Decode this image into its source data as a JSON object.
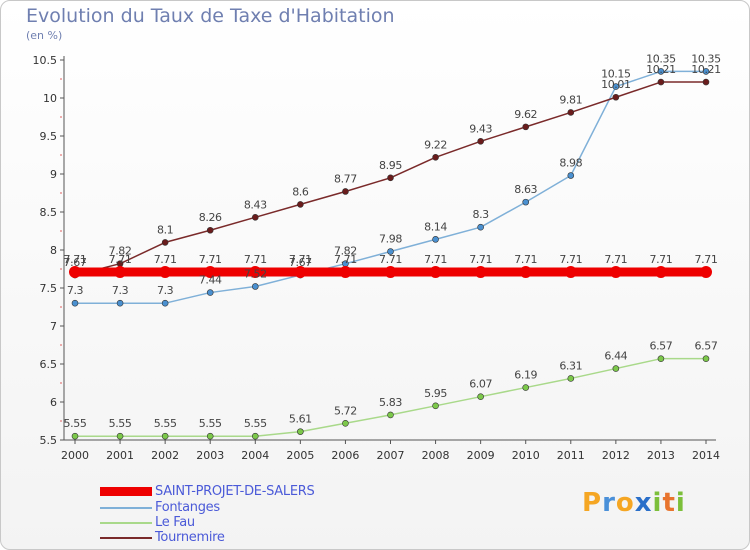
{
  "title": "Evolution du Taux de Taxe d'Habitation",
  "subtitle": "(en %)",
  "logo": {
    "text": "Proxiti",
    "letters": [
      "P",
      "r",
      "o",
      "x",
      "i",
      "t",
      "i"
    ],
    "colors": [
      "#f5a623",
      "#4a90d9",
      "#f5a623",
      "#2a6fc9",
      "#7cbf3a",
      "#e8742e",
      "#7cbf3a"
    ]
  },
  "chart_data": {
    "type": "line",
    "x": [
      "2000",
      "2001",
      "2002",
      "2003",
      "2004",
      "2005",
      "2006",
      "2007",
      "2008",
      "2009",
      "2010",
      "2011",
      "2012",
      "2013",
      "2014"
    ],
    "ylim": [
      5.5,
      10.5
    ],
    "yticks": [
      "5.5",
      "6",
      "6.5",
      "7",
      "7.5",
      "8",
      "8.5",
      "9",
      "9.5",
      "10",
      "10.5"
    ],
    "grid": false,
    "legend_position": "bottom-left",
    "series": [
      {
        "name": "SAINT-PROJET-DE-SALERS",
        "color": "#ee0000",
        "width": 9,
        "marker_r": 6,
        "values": [
          7.71,
          7.71,
          7.71,
          7.71,
          7.71,
          7.71,
          7.71,
          7.71,
          7.71,
          7.71,
          7.71,
          7.71,
          7.71,
          7.71,
          7.71
        ],
        "labels": [
          "7.71",
          "7.71",
          "7.71",
          "7.71",
          "7.71",
          "7.71",
          "7.71",
          "7.71",
          "7.71",
          "7.71",
          "7.71",
          "7.71",
          "7.71",
          "7.71",
          "7.71"
        ]
      },
      {
        "name": "Fontanges",
        "color": "#7fb0d8",
        "marker": "#4a90d0",
        "width": 1.5,
        "marker_r": 3,
        "values": [
          7.3,
          7.3,
          7.3,
          7.44,
          7.52,
          7.67,
          7.82,
          7.98,
          8.14,
          8.3,
          8.63,
          8.98,
          10.15,
          10.35,
          10.35
        ],
        "labels": [
          "7.3",
          "7.3",
          "7.3",
          "7.44",
          "7.52",
          "7.67",
          "7.82",
          "7.98",
          "8.14",
          "8.3",
          "8.63",
          "8.98",
          "10.15",
          "10.35",
          "10.35"
        ]
      },
      {
        "name": "Le Fau",
        "color": "#a9d98a",
        "marker": "#7cc84a",
        "width": 1.5,
        "marker_r": 3,
        "values": [
          5.55,
          5.55,
          5.55,
          5.55,
          5.55,
          5.61,
          5.72,
          5.83,
          5.95,
          6.07,
          6.19,
          6.31,
          6.44,
          6.57,
          6.57
        ],
        "labels": [
          "5.55",
          "5.55",
          "5.55",
          "5.55",
          "5.55",
          "5.61",
          "5.72",
          "5.83",
          "5.95",
          "6.07",
          "6.19",
          "6.31",
          "6.44",
          "6.57",
          "6.57"
        ]
      },
      {
        "name": "Tournemire",
        "color": "#7a2a2a",
        "marker": "#6a1c1c",
        "width": 1.5,
        "marker_r": 3,
        "values": [
          7.67,
          7.82,
          8.1,
          8.26,
          8.43,
          8.6,
          8.77,
          8.95,
          9.22,
          9.43,
          9.62,
          9.81,
          10.01,
          10.21,
          10.21
        ],
        "labels": [
          "7.67",
          "7.82",
          "8.1",
          "8.26",
          "8.43",
          "8.6",
          "8.77",
          "8.95",
          "9.22",
          "9.43",
          "9.62",
          "9.81",
          "10.01",
          "10.21",
          "10.21"
        ]
      }
    ]
  }
}
